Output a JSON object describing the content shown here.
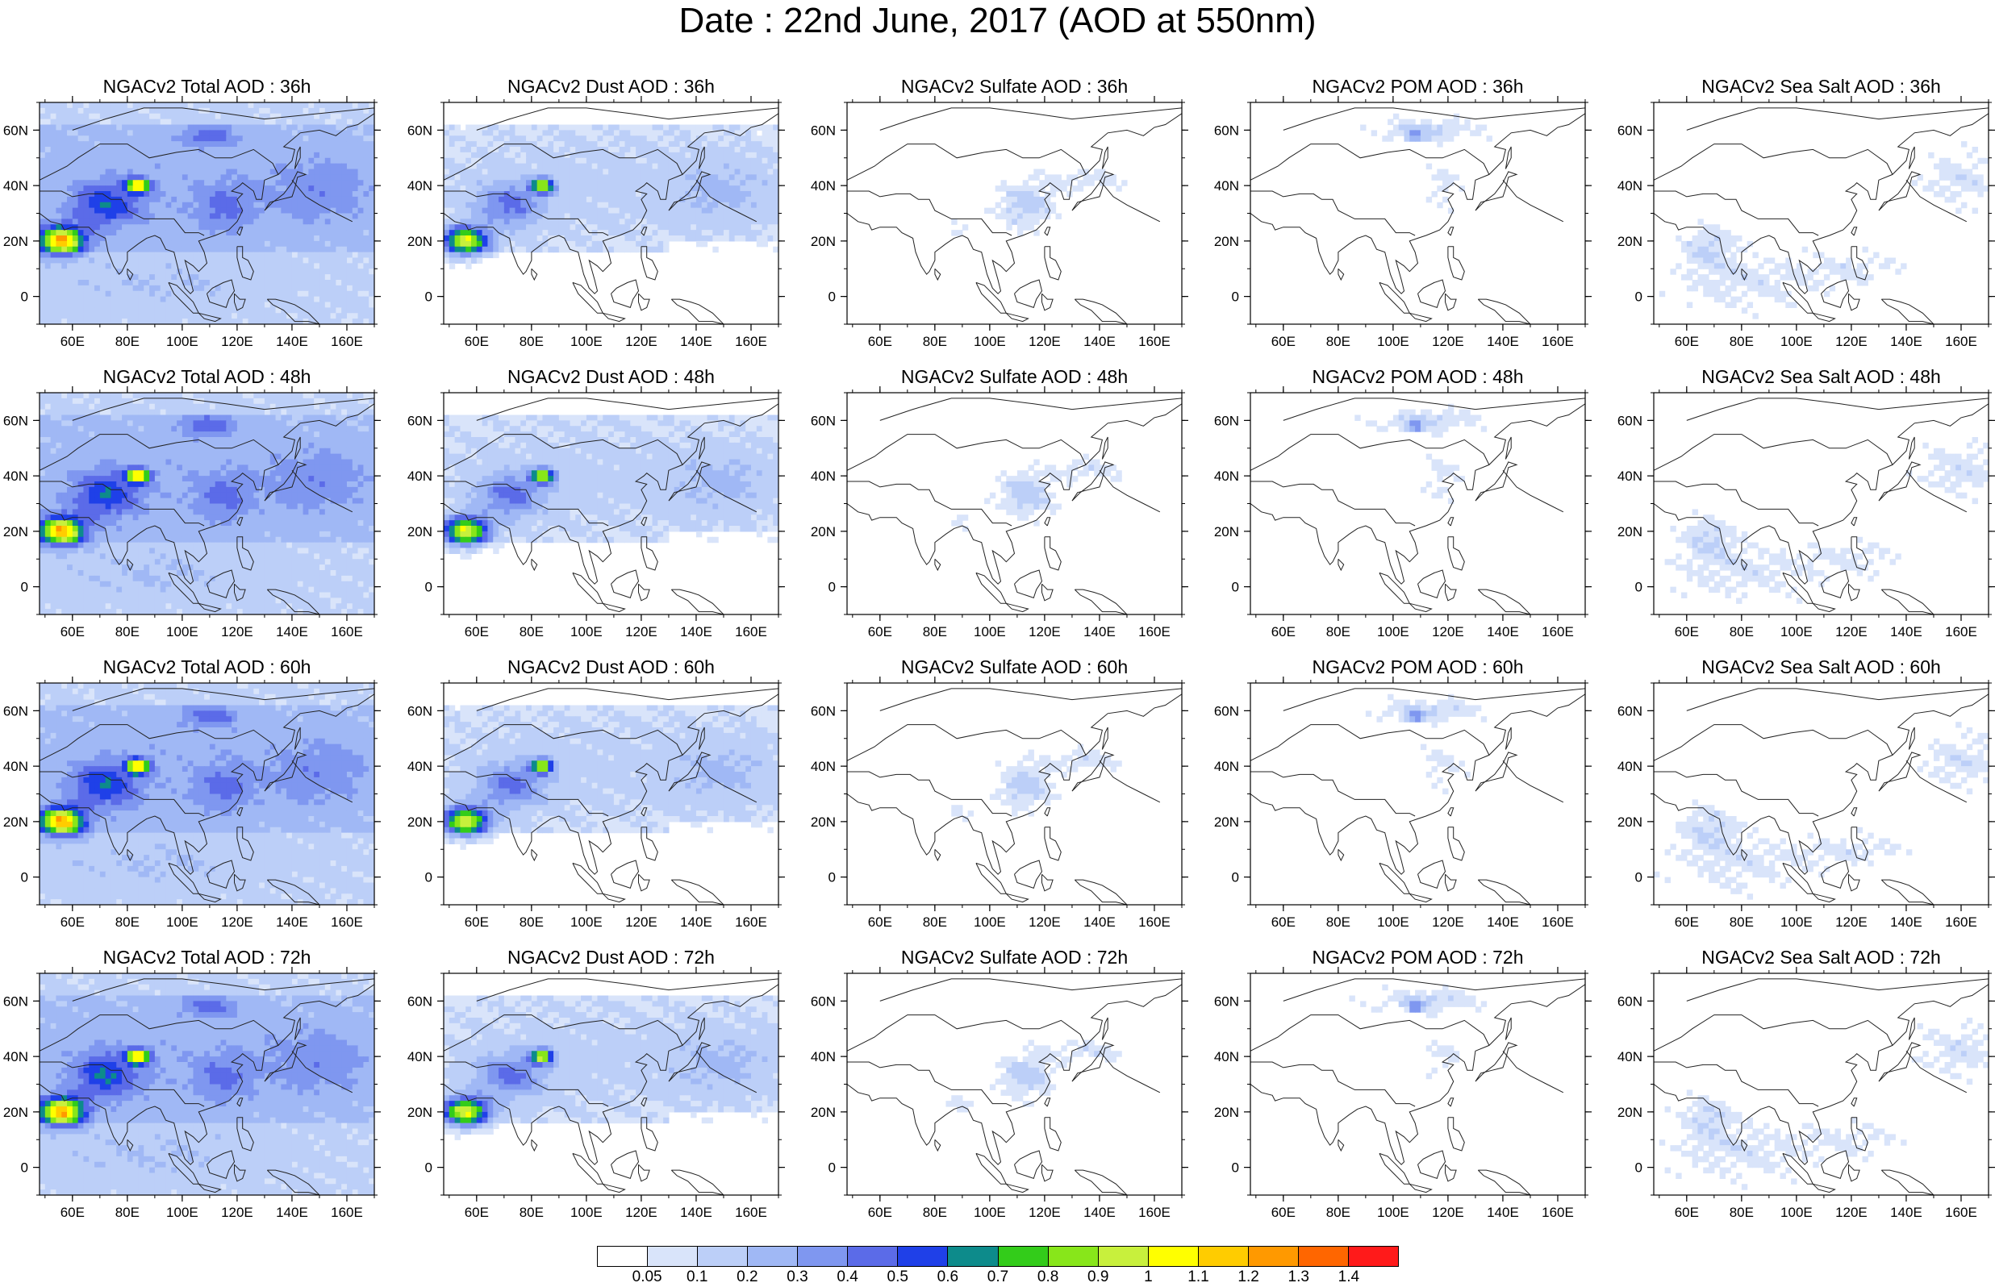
{
  "title": "Date : 22nd June, 2017 (AOD at 550nm)",
  "panels": [
    {
      "title": "NGACv2 Total AOD : 36h",
      "kind": "total",
      "hour": 36
    },
    {
      "title": "NGACv2 Dust AOD : 36h",
      "kind": "dust",
      "hour": 36
    },
    {
      "title": "NGACv2 Sulfate AOD : 36h",
      "kind": "sulfate",
      "hour": 36
    },
    {
      "title": "NGACv2 POM AOD : 36h",
      "kind": "pom",
      "hour": 36
    },
    {
      "title": "NGACv2 Sea Salt AOD : 36h",
      "kind": "seasalt",
      "hour": 36
    },
    {
      "title": "NGACv2 Total AOD : 48h",
      "kind": "total",
      "hour": 48
    },
    {
      "title": "NGACv2 Dust AOD : 48h",
      "kind": "dust",
      "hour": 48
    },
    {
      "title": "NGACv2 Sulfate AOD : 48h",
      "kind": "sulfate",
      "hour": 48
    },
    {
      "title": "NGACv2 POM AOD : 48h",
      "kind": "pom",
      "hour": 48
    },
    {
      "title": "NGACv2 Sea Salt AOD : 48h",
      "kind": "seasalt",
      "hour": 48
    },
    {
      "title": "NGACv2 Total AOD : 60h",
      "kind": "total",
      "hour": 60
    },
    {
      "title": "NGACv2 Dust AOD : 60h",
      "kind": "dust",
      "hour": 60
    },
    {
      "title": "NGACv2 Sulfate AOD : 60h",
      "kind": "sulfate",
      "hour": 60
    },
    {
      "title": "NGACv2 POM AOD : 60h",
      "kind": "pom",
      "hour": 60
    },
    {
      "title": "NGACv2 Sea Salt AOD : 60h",
      "kind": "seasalt",
      "hour": 60
    },
    {
      "title": "NGACv2 Total AOD : 72h",
      "kind": "total",
      "hour": 72
    },
    {
      "title": "NGACv2 Dust AOD : 72h",
      "kind": "dust",
      "hour": 72
    },
    {
      "title": "NGACv2 Sulfate AOD : 72h",
      "kind": "sulfate",
      "hour": 72
    },
    {
      "title": "NGACv2 POM AOD : 72h",
      "kind": "pom",
      "hour": 72
    },
    {
      "title": "NGACv2 Sea Salt  AOD : 72h",
      "kind": "seasalt",
      "hour": 72
    }
  ],
  "map": {
    "lon_range": [
      48,
      170
    ],
    "lat_range": [
      -10,
      70
    ],
    "lon_ticks": [
      60,
      80,
      100,
      120,
      140,
      160
    ],
    "lon_tick_labels": [
      "60E",
      "80E",
      "100E",
      "120E",
      "140E",
      "160E"
    ],
    "lat_ticks": [
      0,
      20,
      40,
      60
    ],
    "lat_tick_labels": [
      "0",
      "20N",
      "40N",
      "60N"
    ]
  },
  "colorbar": {
    "labels": [
      "0.05",
      "0.1",
      "0.2",
      "0.3",
      "0.4",
      "0.5",
      "0.6",
      "0.7",
      "0.8",
      "0.9",
      "1",
      "1.1",
      "1.2",
      "1.3",
      "1.4"
    ],
    "colors": [
      "#ffffff",
      "#d9e4fa",
      "#bccff8",
      "#a0b8f5",
      "#7f97f0",
      "#5b6be8",
      "#1f40e8",
      "#0d8b8b",
      "#33cc1a",
      "#88e61a",
      "#c8f03c",
      "#ffff00",
      "#ffcc00",
      "#ff9900",
      "#ff6600",
      "#ff1a1a"
    ]
  }
}
